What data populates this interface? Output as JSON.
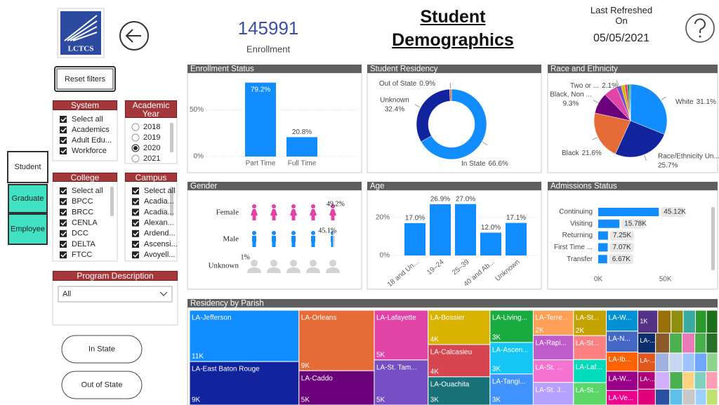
{
  "logo": "LCTCS",
  "kpi": {
    "value": 145991,
    "label": "Enrollment"
  },
  "title": "Student Demographics",
  "refresh": {
    "label": "Last Refreshed On",
    "date": "05/05/2021"
  },
  "reset_button": "Reset filters",
  "nav": [
    "Student",
    "Graduate",
    "Employee"
  ],
  "slicers": [
    {
      "title": "System",
      "items": [
        "Select all",
        "Academics",
        "Adult Edu...",
        "Workforce"
      ]
    },
    {
      "title": "Academic Year",
      "items": [
        "2018",
        "2019",
        "2020",
        "2021"
      ],
      "selected": 2
    },
    {
      "title": "College",
      "items": [
        "Select all",
        "BPCC",
        "BRCC",
        "CENLA",
        "DCC",
        "DELTA",
        "FTCC"
      ]
    },
    {
      "title": "Campus",
      "items": [
        "Select all",
        "Acadia...",
        "Acadia...",
        "Alexan...",
        "Ardend...",
        "Ascensi...",
        "Avoyell..."
      ]
    }
  ],
  "program": {
    "title": "Program Description",
    "value": "All"
  },
  "buttons": [
    "In State",
    "Out of State"
  ],
  "chart_data": [
    {
      "type": "bar",
      "title": "Enrollment Status",
      "categories": [
        "Part Time",
        "Full Time"
      ],
      "values": [
        79.2,
        20.8
      ],
      "value_labels": [
        "79.2%",
        "20.8%"
      ],
      "color": "#118dff",
      "ylim": [
        0,
        85
      ],
      "yticks": [
        {
          "value": 0,
          "label": "0%"
        },
        {
          "value": 50,
          "label": "50%"
        }
      ],
      "grid": true
    },
    {
      "type": "donut",
      "title": "Student Residency",
      "categories": [
        "In State",
        "Unknown",
        "Out of State"
      ],
      "values": [
        66.6,
        32.4,
        0.9
      ],
      "value_labels": [
        "66.6%",
        "32.4%",
        "0.9%"
      ],
      "colors": [
        "#118dff",
        "#12239e",
        "#e66c37"
      ]
    },
    {
      "type": "pie",
      "title": "Race and Ethnicity",
      "categories": [
        "White",
        "Race/Ethnicity Un...",
        "Black",
        "Black, Non ...",
        null,
        "Two or ...",
        null,
        null,
        null,
        null
      ],
      "values": [
        31.1,
        25.7,
        21.6,
        9.3,
        6.0,
        2.1,
        1.6,
        1.2,
        0.8,
        0.6
      ],
      "value_labels": [
        "31.1%",
        "25.7%",
        "21.6%",
        "9.3%",
        null,
        "2.1%",
        null,
        null,
        null,
        null
      ],
      "colors": [
        "#118dff",
        "#12239e",
        "#e66c37",
        "#6b007b",
        "#e044a7",
        "#744ec2",
        "#d9b300",
        "#d64550",
        "#197278",
        "#1aab40"
      ]
    },
    {
      "type": "pictogram",
      "title": "Gender",
      "categories": [
        "Female",
        "Male",
        "Unknown"
      ],
      "values": [
        49.2,
        45.1,
        1
      ],
      "value_labels": [
        "49.2%",
        "45.1%",
        "1%"
      ],
      "colors": [
        "#e044a7",
        "#118dff",
        "#a6a6a6"
      ],
      "xlim": [
        0,
        50
      ]
    },
    {
      "type": "bar",
      "title": "Age",
      "categories": [
        "18 and Un...",
        "19–24",
        "25–39",
        "40 and Ab...",
        "Unknown"
      ],
      "values": [
        17.0,
        26.9,
        27.0,
        12.0,
        17.1
      ],
      "value_labels": [
        "17.0%",
        "26.9%",
        "27.0%",
        "12.0%",
        "17.1%"
      ],
      "color": "#118dff",
      "ylim": [
        0,
        28
      ],
      "yticks": [
        {
          "value": 0,
          "label": "0%"
        },
        {
          "value": 20,
          "label": "20%"
        }
      ],
      "grid": true
    },
    {
      "type": "hbar",
      "title": "Admissions Status",
      "categories": [
        "Continuing",
        "Visiting",
        "Returning",
        "First Time ...",
        "Transfer"
      ],
      "values": [
        45120,
        15780,
        7250,
        7070,
        6670
      ],
      "value_labels": [
        "45.12K",
        "15.78K",
        "7.25K",
        "7.07K",
        "6.67K"
      ],
      "color": "#118dff",
      "xlim": [
        0,
        80000
      ],
      "xticks": [
        {
          "value": 0,
          "label": "0K"
        },
        {
          "value": 50000,
          "label": "50K"
        }
      ]
    },
    {
      "type": "treemap",
      "title": "Residency by Parish",
      "categories": [
        "LA-Jefferson",
        "LA-East Baton Rouge",
        "LA-Orleans",
        "LA-Caddo",
        "LA-Lafayette",
        "LA-St. Tam...",
        "LA-Bossier",
        "LA-Calcasieu",
        "LA-Ouachita",
        "LA-Living...",
        "LA-Ascen...",
        "LA-Tangi...",
        "LA-Terre...",
        "LA-Rapi...",
        "LA-St. ...",
        "LA-St. J...",
        "LA-St...",
        "LA-St...",
        "LA-Laf...",
        "LA-St...",
        "LA-W...",
        "LA-N...",
        "LA-Ib...",
        "LA-W...",
        "LA-Ve...",
        null,
        null,
        null,
        null,
        null,
        null,
        "LA-...",
        null,
        null,
        null,
        null,
        null,
        "LA-...",
        null,
        null,
        null,
        null,
        null,
        "LA-...",
        null,
        null,
        null,
        null,
        null,
        null,
        null,
        null,
        null,
        null,
        null
      ],
      "values": [
        11100,
        9400,
        9000,
        5100,
        5300,
        4800,
        4200,
        3950,
        3450,
        2750,
        2700,
        2650,
        2000,
        1950,
        1800,
        1800,
        1650,
        1550,
        1500,
        1450,
        1300,
        1300,
        1200,
        1200,
        900,
        900,
        600,
        550,
        550,
        500,
        500,
        700,
        550,
        500,
        500,
        450,
        450,
        650,
        500,
        500,
        450,
        450,
        400,
        600,
        500,
        450,
        400,
        400,
        400,
        550,
        450,
        400,
        400,
        350,
        350
      ],
      "value_labels": [
        "11K",
        "9K",
        "9K",
        "5K",
        "5K",
        "5K",
        "4K",
        "4K",
        "3K",
        "3K",
        "3K",
        "3K",
        "2K",
        null,
        null,
        null,
        "2K",
        null,
        null,
        null,
        null,
        null,
        null,
        null,
        null,
        "1K",
        null,
        null,
        null,
        null,
        null,
        null,
        null,
        null,
        null,
        null,
        null,
        null,
        null,
        null,
        null,
        null,
        null,
        null,
        null,
        null,
        null,
        null,
        null,
        null,
        null,
        null,
        null,
        null,
        null
      ],
      "colors": [
        "#118dff",
        "#12239e",
        "#e66c37",
        "#6b007b",
        "#e044a7",
        "#744ec2",
        "#d9b300",
        "#d64550",
        "#197278",
        "#1aab40",
        "#15c6f4",
        "#4092ff",
        "#ffa058",
        "#be5dc9",
        "#f472d0",
        "#b5a1ff",
        "#c4a200",
        "#ff8080",
        "#00dbbc",
        "#5bd667",
        "#0091d5",
        "#4668c5",
        "#ff6300",
        "#99008a",
        "#ec008c",
        "#533285",
        "#99700a",
        "#8f8f0f",
        "#3aa99f",
        "#2b9a2b",
        "#1b6e1b",
        "#0c2f6b",
        "#8a5a2b",
        "#4caf50",
        "#e87ab8",
        "#48b048",
        "#25702a",
        "#e0561b",
        "#9fb0e0",
        "#c9d6f0",
        "#a0c4ff",
        "#6ea8ff",
        "#8fd18f",
        "#b0007a",
        "#d0b0ff",
        "#4caf50",
        "#ffd27f",
        "#80d0c0",
        "#ff9eb5",
        "#e0007a",
        "#2a4fa0",
        "#5ec0e8",
        "#c8c8c8",
        "#9bd0ff",
        "#c0e070"
      ]
    }
  ]
}
